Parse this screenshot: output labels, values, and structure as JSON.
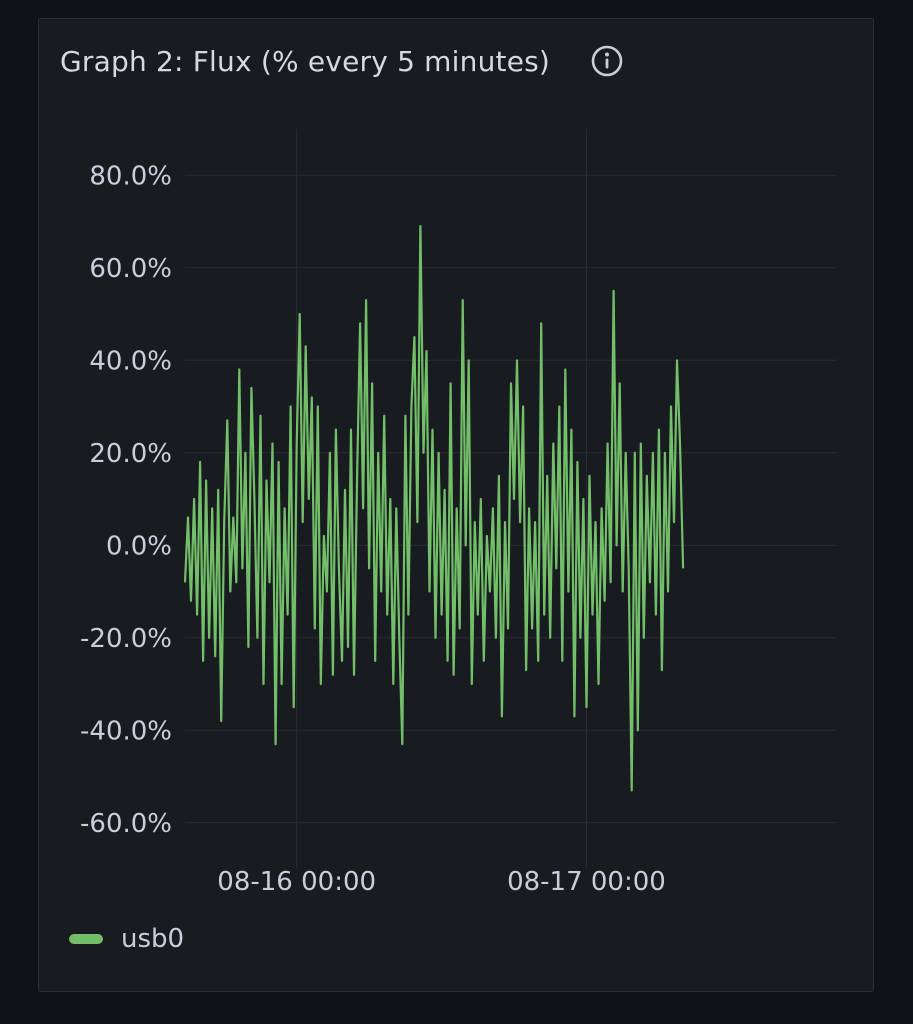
{
  "panel": {
    "title": "Graph 2: Flux (% every 5 minutes)",
    "info_icon": "info-icon"
  },
  "colors": {
    "background": "#111217",
    "panel": "#181b1f",
    "grid": "#2a2d33",
    "series": "#73bf69",
    "text": "#ccccdc"
  },
  "chart_data": {
    "type": "line",
    "title": "Graph 2: Flux (% every 5 minutes)",
    "xlabel": "",
    "ylabel": "",
    "y_unit": "percent",
    "ylim": [
      -70,
      90
    ],
    "y_ticks": [
      {
        "value": 80,
        "label": "80.0%"
      },
      {
        "value": 60,
        "label": "60.0%"
      },
      {
        "value": 40,
        "label": "40.0%"
      },
      {
        "value": 20,
        "label": "20.0%"
      },
      {
        "value": 0,
        "label": "0.0%"
      },
      {
        "value": -20,
        "label": "-20.0%"
      },
      {
        "value": -40,
        "label": "-40.0%"
      },
      {
        "value": -60,
        "label": "-60.0%"
      }
    ],
    "x_range": [
      "2024-08-15 14:45",
      "2024-08-17 20:45"
    ],
    "x_ticks": [
      {
        "value": "2024-08-16 00:00",
        "label": "08-16 00:00"
      },
      {
        "value": "2024-08-17 00:00",
        "label": "08-17 00:00"
      }
    ],
    "grid": true,
    "legend": "bottom-left",
    "series": [
      {
        "name": "usb0",
        "color": "#73bf69",
        "points": [
          [
            "2024-08-15 14:45",
            -8
          ],
          [
            "2024-08-15 15:00",
            6
          ],
          [
            "2024-08-15 15:15",
            -12
          ],
          [
            "2024-08-15 15:30",
            10
          ],
          [
            "2024-08-15 15:45",
            -15
          ],
          [
            "2024-08-15 16:00",
            18
          ],
          [
            "2024-08-15 16:15",
            -25
          ],
          [
            "2024-08-15 16:30",
            14
          ],
          [
            "2024-08-15 16:45",
            -20
          ],
          [
            "2024-08-15 17:00",
            8
          ],
          [
            "2024-08-15 17:15",
            -24
          ],
          [
            "2024-08-15 17:30",
            12
          ],
          [
            "2024-08-15 17:45",
            -38
          ],
          [
            "2024-08-15 18:00",
            5
          ],
          [
            "2024-08-15 18:15",
            27
          ],
          [
            "2024-08-15 18:30",
            -10
          ],
          [
            "2024-08-15 18:45",
            6
          ],
          [
            "2024-08-15 19:00",
            -8
          ],
          [
            "2024-08-15 19:15",
            38
          ],
          [
            "2024-08-15 19:30",
            -5
          ],
          [
            "2024-08-15 19:45",
            20
          ],
          [
            "2024-08-15 20:00",
            -22
          ],
          [
            "2024-08-15 20:15",
            34
          ],
          [
            "2024-08-15 20:30",
            10
          ],
          [
            "2024-08-15 20:45",
            -20
          ],
          [
            "2024-08-15 21:00",
            28
          ],
          [
            "2024-08-15 21:15",
            -30
          ],
          [
            "2024-08-15 21:30",
            14
          ],
          [
            "2024-08-15 21:45",
            -8
          ],
          [
            "2024-08-15 22:00",
            22
          ],
          [
            "2024-08-15 22:15",
            -43
          ],
          [
            "2024-08-15 22:30",
            18
          ],
          [
            "2024-08-15 22:45",
            -30
          ],
          [
            "2024-08-15 23:00",
            8
          ],
          [
            "2024-08-15 23:15",
            -15
          ],
          [
            "2024-08-15 23:30",
            30
          ],
          [
            "2024-08-15 23:45",
            -35
          ],
          [
            "2024-08-16 00:00",
            22
          ],
          [
            "2024-08-16 00:15",
            50
          ],
          [
            "2024-08-16 00:30",
            5
          ],
          [
            "2024-08-16 00:45",
            43
          ],
          [
            "2024-08-16 01:00",
            10
          ],
          [
            "2024-08-16 01:15",
            32
          ],
          [
            "2024-08-16 01:30",
            -18
          ],
          [
            "2024-08-16 01:45",
            30
          ],
          [
            "2024-08-16 02:00",
            -30
          ],
          [
            "2024-08-16 02:15",
            2
          ],
          [
            "2024-08-16 02:30",
            -10
          ],
          [
            "2024-08-16 02:45",
            20
          ],
          [
            "2024-08-16 03:00",
            -28
          ],
          [
            "2024-08-16 03:15",
            25
          ],
          [
            "2024-08-16 03:30",
            -5
          ],
          [
            "2024-08-16 03:45",
            -25
          ],
          [
            "2024-08-16 04:00",
            12
          ],
          [
            "2024-08-16 04:15",
            -22
          ],
          [
            "2024-08-16 04:30",
            25
          ],
          [
            "2024-08-16 04:45",
            -28
          ],
          [
            "2024-08-16 05:00",
            15
          ],
          [
            "2024-08-16 05:15",
            48
          ],
          [
            "2024-08-16 05:30",
            8
          ],
          [
            "2024-08-16 05:45",
            53
          ],
          [
            "2024-08-16 06:00",
            -5
          ],
          [
            "2024-08-16 06:15",
            35
          ],
          [
            "2024-08-16 06:30",
            -25
          ],
          [
            "2024-08-16 06:45",
            20
          ],
          [
            "2024-08-16 07:00",
            -10
          ],
          [
            "2024-08-16 07:15",
            28
          ],
          [
            "2024-08-16 07:30",
            -15
          ],
          [
            "2024-08-16 07:45",
            10
          ],
          [
            "2024-08-16 08:00",
            -30
          ],
          [
            "2024-08-16 08:15",
            8
          ],
          [
            "2024-08-16 08:30",
            -20
          ],
          [
            "2024-08-16 08:45",
            -43
          ],
          [
            "2024-08-16 09:00",
            28
          ],
          [
            "2024-08-16 09:15",
            -15
          ],
          [
            "2024-08-16 09:30",
            30
          ],
          [
            "2024-08-16 09:45",
            45
          ],
          [
            "2024-08-16 10:00",
            5
          ],
          [
            "2024-08-16 10:15",
            69
          ],
          [
            "2024-08-16 10:30",
            20
          ],
          [
            "2024-08-16 10:45",
            42
          ],
          [
            "2024-08-16 11:00",
            -10
          ],
          [
            "2024-08-16 11:15",
            25
          ],
          [
            "2024-08-16 11:30",
            -20
          ],
          [
            "2024-08-16 11:45",
            20
          ],
          [
            "2024-08-16 12:00",
            -15
          ],
          [
            "2024-08-16 12:15",
            12
          ],
          [
            "2024-08-16 12:30",
            -25
          ],
          [
            "2024-08-16 12:45",
            35
          ],
          [
            "2024-08-16 13:00",
            -28
          ],
          [
            "2024-08-16 13:15",
            8
          ],
          [
            "2024-08-16 13:30",
            -18
          ],
          [
            "2024-08-16 13:45",
            53
          ],
          [
            "2024-08-16 14:00",
            0
          ],
          [
            "2024-08-16 14:15",
            40
          ],
          [
            "2024-08-16 14:30",
            -30
          ],
          [
            "2024-08-16 14:45",
            5
          ],
          [
            "2024-08-16 15:00",
            -15
          ],
          [
            "2024-08-16 15:15",
            10
          ],
          [
            "2024-08-16 15:30",
            -25
          ],
          [
            "2024-08-16 15:45",
            2
          ],
          [
            "2024-08-16 16:00",
            -10
          ],
          [
            "2024-08-16 16:15",
            8
          ],
          [
            "2024-08-16 16:30",
            -20
          ],
          [
            "2024-08-16 16:45",
            15
          ],
          [
            "2024-08-16 17:00",
            -37
          ],
          [
            "2024-08-16 17:15",
            5
          ],
          [
            "2024-08-16 17:30",
            -18
          ],
          [
            "2024-08-16 17:45",
            35
          ],
          [
            "2024-08-16 18:00",
            10
          ],
          [
            "2024-08-16 18:15",
            40
          ],
          [
            "2024-08-16 18:30",
            5
          ],
          [
            "2024-08-16 18:45",
            30
          ],
          [
            "2024-08-16 19:00",
            -27
          ],
          [
            "2024-08-16 19:15",
            8
          ],
          [
            "2024-08-16 19:30",
            -18
          ],
          [
            "2024-08-16 19:45",
            5
          ],
          [
            "2024-08-16 20:00",
            -25
          ],
          [
            "2024-08-16 20:15",
            48
          ],
          [
            "2024-08-16 20:30",
            -15
          ],
          [
            "2024-08-16 20:45",
            15
          ],
          [
            "2024-08-16 21:00",
            -20
          ],
          [
            "2024-08-16 21:15",
            22
          ],
          [
            "2024-08-16 21:30",
            -5
          ],
          [
            "2024-08-16 21:45",
            30
          ],
          [
            "2024-08-16 22:00",
            -25
          ],
          [
            "2024-08-16 22:15",
            38
          ],
          [
            "2024-08-16 22:30",
            -10
          ],
          [
            "2024-08-16 22:45",
            25
          ],
          [
            "2024-08-16 23:00",
            -37
          ],
          [
            "2024-08-16 23:15",
            18
          ],
          [
            "2024-08-16 23:30",
            -20
          ],
          [
            "2024-08-16 23:45",
            10
          ],
          [
            "2024-08-17 00:00",
            -35
          ],
          [
            "2024-08-17 00:15",
            15
          ],
          [
            "2024-08-17 00:30",
            -15
          ],
          [
            "2024-08-17 00:45",
            5
          ],
          [
            "2024-08-17 01:00",
            -30
          ],
          [
            "2024-08-17 01:15",
            8
          ],
          [
            "2024-08-17 01:30",
            -12
          ],
          [
            "2024-08-17 01:45",
            22
          ],
          [
            "2024-08-17 02:00",
            -8
          ],
          [
            "2024-08-17 02:15",
            55
          ],
          [
            "2024-08-17 02:30",
            0
          ],
          [
            "2024-08-17 02:45",
            35
          ],
          [
            "2024-08-17 03:00",
            -10
          ],
          [
            "2024-08-17 03:15",
            20
          ],
          [
            "2024-08-17 03:30",
            -5
          ],
          [
            "2024-08-17 03:45",
            -53
          ],
          [
            "2024-08-17 04:00",
            20
          ],
          [
            "2024-08-17 04:15",
            -40
          ],
          [
            "2024-08-17 04:30",
            22
          ],
          [
            "2024-08-17 04:45",
            -20
          ],
          [
            "2024-08-17 05:00",
            15
          ],
          [
            "2024-08-17 05:15",
            -8
          ],
          [
            "2024-08-17 05:30",
            20
          ],
          [
            "2024-08-17 05:45",
            -15
          ],
          [
            "2024-08-17 06:00",
            25
          ],
          [
            "2024-08-17 06:15",
            -27
          ],
          [
            "2024-08-17 06:30",
            20
          ],
          [
            "2024-08-17 06:45",
            -10
          ],
          [
            "2024-08-17 07:00",
            30
          ],
          [
            "2024-08-17 07:15",
            5
          ],
          [
            "2024-08-17 07:30",
            40
          ],
          [
            "2024-08-17 07:45",
            22
          ],
          [
            "2024-08-17 08:00",
            -5
          ]
        ]
      }
    ]
  },
  "legend": {
    "items": [
      {
        "label": "usb0",
        "color": "#73bf69"
      }
    ]
  }
}
